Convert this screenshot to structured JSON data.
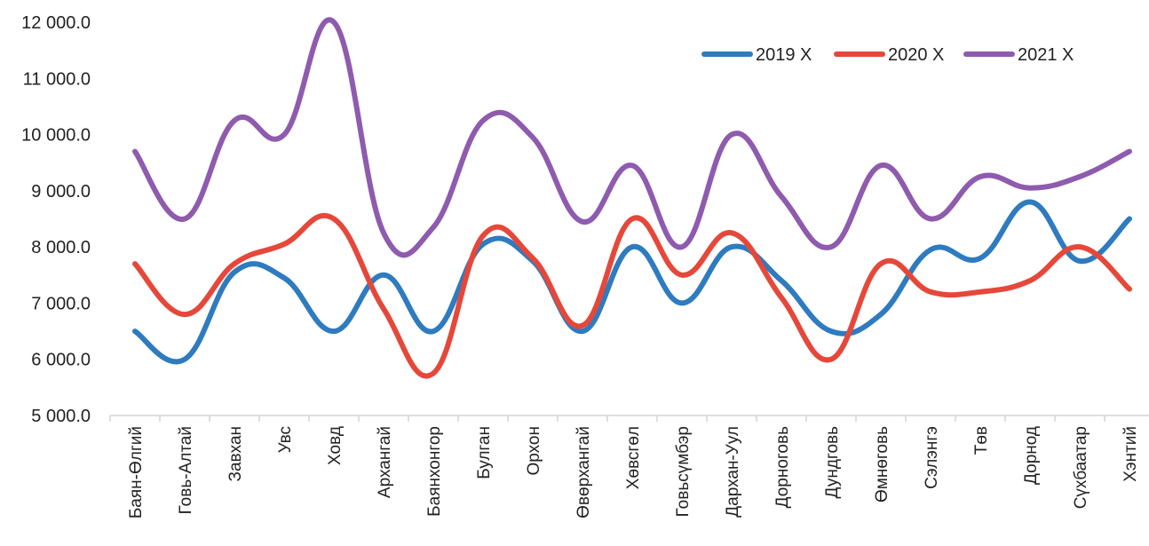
{
  "chart_data": {
    "type": "line",
    "smooth": true,
    "title": "",
    "xlabel": "",
    "ylabel": "",
    "ylim": [
      5000,
      12000
    ],
    "yticks": [
      5000,
      6000,
      7000,
      8000,
      9000,
      10000,
      11000,
      12000
    ],
    "ytick_labels": [
      "5 000.0",
      "6 000.0",
      "7 000.0",
      "8 000.0",
      "9 000.0",
      "10 000.0",
      "11 000.0",
      "12 000.0"
    ],
    "grid": false,
    "legend_position": "top-right",
    "categories": [
      "Баян-Өлгий",
      "Говь-Алтай",
      "Завхан",
      "Увс",
      "Ховд",
      "Архангай",
      "Баянхонгор",
      "Булган",
      "Орхон",
      "Өвөрхангай",
      "Хөвсгөл",
      "Говьсүмбэр",
      "Дархан-Уул",
      "Дорноговь",
      "Дундговь",
      "Өмнөговь",
      "Сэлэнгэ",
      "Төв",
      "Дорнод",
      "Сүхбаатар",
      "Хэнтий"
    ],
    "series": [
      {
        "name": "2019 Х",
        "color": "#2e7bbf",
        "values": [
          6500,
          6000,
          7550,
          7450,
          6500,
          7500,
          6500,
          8050,
          7750,
          6500,
          8000,
          7000,
          8000,
          7400,
          6500,
          6800,
          7950,
          7800,
          8800,
          7750,
          8500
        ]
      },
      {
        "name": "2020 Х",
        "color": "#e5483a",
        "values": [
          7700,
          6800,
          7700,
          8050,
          8500,
          6900,
          5750,
          8200,
          7800,
          6600,
          8500,
          7500,
          8250,
          7100,
          6000,
          7700,
          7200,
          7200,
          7400,
          8000,
          7250
        ]
      },
      {
        "name": "2021 Х",
        "color": "#8e5bae",
        "values": [
          9700,
          8500,
          10250,
          10000,
          12000,
          8250,
          8350,
          10250,
          9950,
          8450,
          9450,
          8000,
          10000,
          8900,
          8000,
          9450,
          8500,
          9250,
          9050,
          9250,
          9700
        ]
      }
    ]
  }
}
